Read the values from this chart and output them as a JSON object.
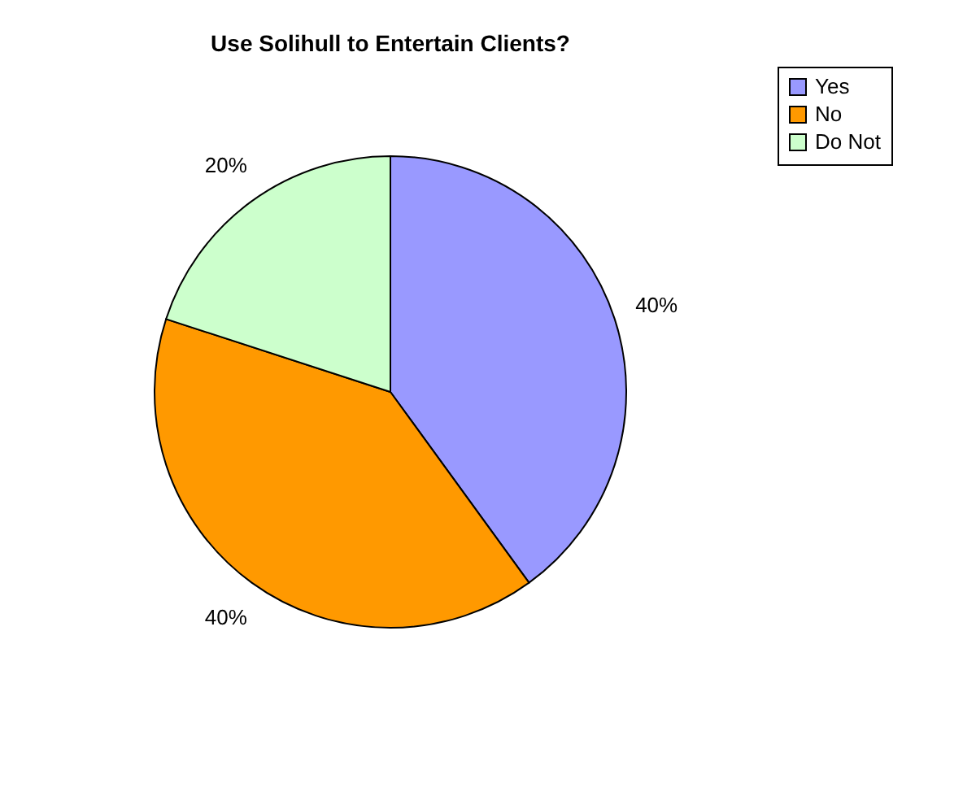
{
  "chart_data": {
    "type": "pie",
    "title": "Use Solihull to Entertain Clients?",
    "categories": [
      "Yes",
      "No",
      "Do Not"
    ],
    "values": [
      40,
      40,
      20
    ],
    "colors": [
      "#9999ff",
      "#ff9900",
      "#ccffcc"
    ],
    "value_labels": [
      "40%",
      "40%",
      "20%"
    ],
    "legend": "right"
  }
}
